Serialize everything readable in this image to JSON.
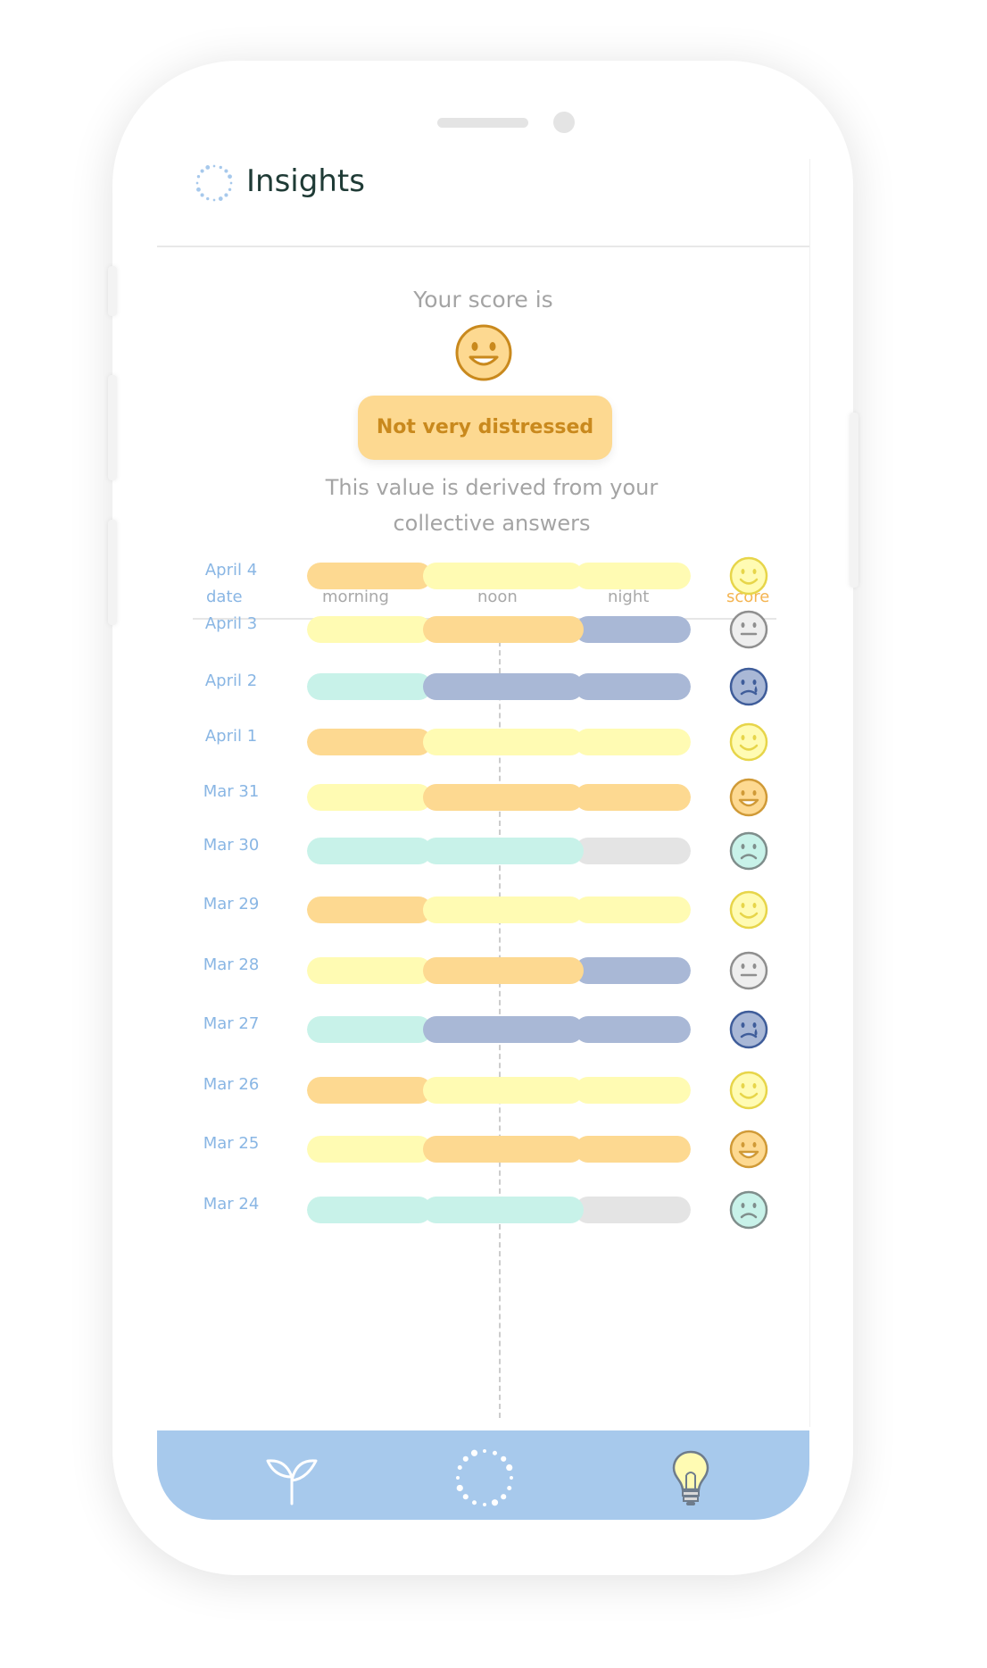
{
  "app": {
    "title": "Insights"
  },
  "score": {
    "label": "Your score is",
    "status": "Not very distressed",
    "description": "This value is derived from your collective answers",
    "face": "grin"
  },
  "table": {
    "headers": {
      "date": "date",
      "morning": "morning",
      "noon": "noon",
      "night": "night",
      "score": "score"
    },
    "rows": [
      {
        "date": "April 4",
        "morning": "orange",
        "noon": "yellow",
        "night": "yellow",
        "face": "smile"
      },
      {
        "date": "April 3",
        "morning": "yellow",
        "noon": "orange",
        "night": "blue",
        "face": "neutral"
      },
      {
        "date": "April 2",
        "morning": "teal",
        "noon": "blue",
        "night": "blue",
        "face": "cry"
      },
      {
        "date": "April 1",
        "morning": "orange",
        "noon": "yellow",
        "night": "yellow",
        "face": "smile"
      },
      {
        "date": "Mar 31",
        "morning": "yellow",
        "noon": "orange",
        "night": "orange",
        "face": "grin"
      },
      {
        "date": "Mar 30",
        "morning": "teal",
        "noon": "teal",
        "night": "gray",
        "face": "sad"
      },
      {
        "date": "Mar 29",
        "morning": "orange",
        "noon": "yellow",
        "night": "yellow",
        "face": "smile"
      },
      {
        "date": "Mar 28",
        "morning": "yellow",
        "noon": "orange",
        "night": "blue",
        "face": "neutral"
      },
      {
        "date": "Mar 27",
        "morning": "teal",
        "noon": "blue",
        "night": "blue",
        "face": "cry"
      },
      {
        "date": "Mar 26",
        "morning": "orange",
        "noon": "yellow",
        "night": "yellow",
        "face": "smile"
      },
      {
        "date": "Mar 25",
        "morning": "yellow",
        "noon": "orange",
        "night": "orange",
        "face": "grin"
      },
      {
        "date": "Mar 24",
        "morning": "teal",
        "noon": "teal",
        "night": "gray",
        "face": "sad"
      }
    ]
  },
  "colors": {
    "orange": "#fdd991",
    "yellow": "#fffbb3",
    "blue": "#a9b8d6",
    "teal": "#c8f2e9",
    "gray": "#e4e4e4",
    "accent": "#f4b451",
    "nav": "#a7c9ec"
  },
  "nav": {
    "items": [
      "sprout-icon",
      "loader-icon",
      "lightbulb-icon"
    ]
  }
}
